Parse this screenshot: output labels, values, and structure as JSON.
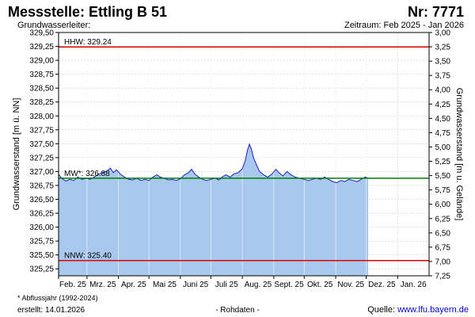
{
  "header": {
    "title": "Messstelle: Ettling B 51",
    "number": "Nr: 7771",
    "aquifer": "Grundwasserleiter:",
    "period": "Zeitraum: Feb 2025 - Jan 2026"
  },
  "footer": {
    "footnote": "* Abflussjahr (1992-2024)",
    "created": "erstellt:  14.01.2026",
    "raw": "- Rohdaten -",
    "source_label": "Quelle: ",
    "source_link": "www.lfu.bayern.de"
  },
  "chart_data": {
    "type": "area",
    "ylabel_left": "Grundwasserstand [m ü. NN]",
    "ylabel_right": "Grundwasserstand [m u. Gelände]",
    "ylim_left": [
      325.125,
      329.5
    ],
    "ylim_right": [
      7.25,
      3.0
    ],
    "yticks_left": [
      "329,50",
      "329,25",
      "329,00",
      "328,75",
      "328,50",
      "328,25",
      "328,00",
      "327,75",
      "327,50",
      "327,25",
      "327,00",
      "326,75",
      "326,50",
      "326,25",
      "326,00",
      "325,75",
      "325,50",
      "325,25"
    ],
    "yticks_right": [
      "3,00",
      "3,25",
      "3,50",
      "3,75",
      "4,00",
      "4,25",
      "4,50",
      "4,75",
      "5,00",
      "5,25",
      "5,50",
      "5,75",
      "6,00",
      "6,25",
      "6,50",
      "6,75",
      "7,00",
      "7,25"
    ],
    "xticks": [
      "Feb. 25",
      "Mrz. 25",
      "Apr. 25",
      "Mai 25",
      "Juni 25",
      "Juli 25",
      "Aug. 25",
      "Sept. 25",
      "Okt. 25",
      "Nov. 25",
      "Dez. 25",
      "Jan. 26"
    ],
    "grid": true,
    "reference_lines": [
      {
        "label": "HHW: 329.24",
        "value": 329.24,
        "color": "#e00000"
      },
      {
        "label": "MW*: 326.88",
        "value": 326.88,
        "color": "#008000"
      },
      {
        "label": "NNW: 325.40",
        "value": 325.4,
        "color": "#e00000"
      }
    ],
    "series": [
      {
        "values": [
          [
            "2025-02-01",
            326.95
          ],
          [
            "2025-02-04",
            326.88
          ],
          [
            "2025-02-08",
            326.83
          ],
          [
            "2025-02-12",
            326.86
          ],
          [
            "2025-02-16",
            326.84
          ],
          [
            "2025-02-20",
            326.9
          ],
          [
            "2025-02-24",
            326.86
          ],
          [
            "2025-03-01",
            326.88
          ],
          [
            "2025-03-04",
            326.86
          ],
          [
            "2025-03-08",
            326.9
          ],
          [
            "2025-03-12",
            326.95
          ],
          [
            "2025-03-16",
            326.98
          ],
          [
            "2025-03-20",
            327.0
          ],
          [
            "2025-03-24",
            327.06
          ],
          [
            "2025-03-27",
            326.98
          ],
          [
            "2025-03-30",
            327.03
          ],
          [
            "2025-04-03",
            326.95
          ],
          [
            "2025-04-07",
            326.9
          ],
          [
            "2025-04-11",
            326.86
          ],
          [
            "2025-04-15",
            326.85
          ],
          [
            "2025-04-19",
            326.88
          ],
          [
            "2025-04-23",
            326.84
          ],
          [
            "2025-04-27",
            326.86
          ],
          [
            "2025-05-01",
            326.84
          ],
          [
            "2025-05-05",
            326.9
          ],
          [
            "2025-05-09",
            326.94
          ],
          [
            "2025-05-12",
            326.9
          ],
          [
            "2025-05-16",
            326.88
          ],
          [
            "2025-05-20",
            326.85
          ],
          [
            "2025-05-24",
            326.86
          ],
          [
            "2025-05-28",
            326.84
          ],
          [
            "2025-06-01",
            326.87
          ],
          [
            "2025-06-05",
            326.94
          ],
          [
            "2025-06-09",
            326.98
          ],
          [
            "2025-06-12",
            327.04
          ],
          [
            "2025-06-15",
            326.96
          ],
          [
            "2025-06-19",
            326.9
          ],
          [
            "2025-06-23",
            326.86
          ],
          [
            "2025-06-27",
            326.84
          ],
          [
            "2025-07-01",
            326.86
          ],
          [
            "2025-07-05",
            326.88
          ],
          [
            "2025-07-09",
            326.85
          ],
          [
            "2025-07-12",
            326.9
          ],
          [
            "2025-07-16",
            326.94
          ],
          [
            "2025-07-20",
            326.9
          ],
          [
            "2025-07-24",
            326.96
          ],
          [
            "2025-07-28",
            326.98
          ],
          [
            "2025-08-01",
            327.05
          ],
          [
            "2025-08-04",
            327.2
          ],
          [
            "2025-08-06",
            327.38
          ],
          [
            "2025-08-08",
            327.49
          ],
          [
            "2025-08-10",
            327.4
          ],
          [
            "2025-08-12",
            327.25
          ],
          [
            "2025-08-15",
            327.12
          ],
          [
            "2025-08-18",
            327.0
          ],
          [
            "2025-08-22",
            326.94
          ],
          [
            "2025-08-26",
            326.9
          ],
          [
            "2025-08-30",
            326.95
          ],
          [
            "2025-09-03",
            327.04
          ],
          [
            "2025-09-06",
            326.98
          ],
          [
            "2025-09-10",
            326.92
          ],
          [
            "2025-09-14",
            327.0
          ],
          [
            "2025-09-18",
            326.94
          ],
          [
            "2025-09-22",
            326.9
          ],
          [
            "2025-09-26",
            326.88
          ],
          [
            "2025-10-01",
            326.86
          ],
          [
            "2025-10-05",
            326.84
          ],
          [
            "2025-10-09",
            326.86
          ],
          [
            "2025-10-13",
            326.88
          ],
          [
            "2025-10-17",
            326.86
          ],
          [
            "2025-10-21",
            326.9
          ],
          [
            "2025-10-25",
            326.86
          ],
          [
            "2025-10-29",
            326.82
          ],
          [
            "2025-11-02",
            326.8
          ],
          [
            "2025-11-06",
            326.84
          ],
          [
            "2025-11-10",
            326.82
          ],
          [
            "2025-11-14",
            326.86
          ],
          [
            "2025-11-18",
            326.84
          ],
          [
            "2025-11-22",
            326.82
          ],
          [
            "2025-11-26",
            326.86
          ],
          [
            "2025-11-30",
            326.9
          ],
          [
            "2025-12-03",
            326.88
          ]
        ]
      }
    ]
  },
  "colors": {
    "area_fill": "#a9c8ee",
    "area_line": "#1a1acd",
    "grid": "#c8c8c8",
    "axis": "#000000"
  }
}
